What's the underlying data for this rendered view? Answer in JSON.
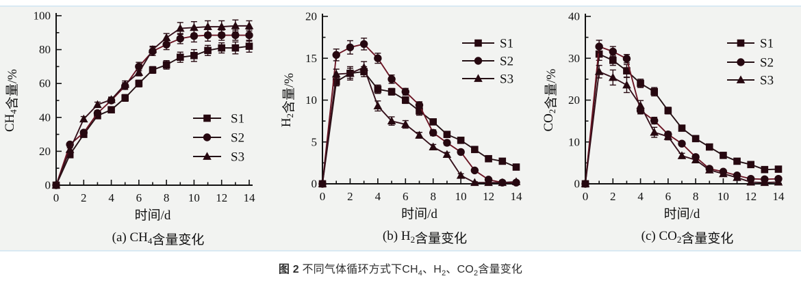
{
  "colors": {
    "panel_bg": "#f2f3f1",
    "panel_border": "#d9e9f3",
    "axis": "#111111",
    "marker": "#260810",
    "line_s1": "#241014",
    "line_s2": "#6b1524",
    "line_s3": "#35101b",
    "caption_text": "#2e2e2e"
  },
  "caption": {
    "parts": [
      {
        "t": "图 2",
        "bold": true
      },
      {
        "t": " 不同气体循环方式下CH"
      },
      {
        "t": "4",
        "sub": true
      },
      {
        "t": "、H"
      },
      {
        "t": "2",
        "sub": true
      },
      {
        "t": "、CO"
      },
      {
        "t": "2",
        "sub": true
      },
      {
        "t": "含量变化"
      }
    ]
  },
  "chart_data": [
    {
      "id": "a",
      "type": "line",
      "title_parts": [
        {
          "t": "(a) CH"
        },
        {
          "t": "4",
          "sub": true
        },
        {
          "t": "含量变化"
        }
      ],
      "xlabel": "时间/d",
      "ylabel_parts": [
        {
          "t": "CH"
        },
        {
          "t": "4",
          "sub": true
        },
        {
          "t": "含量/%"
        }
      ],
      "xlim": [
        0,
        14
      ],
      "xtick": 2,
      "xminor": 1,
      "ylim": [
        0,
        100
      ],
      "ytick": 20,
      "yminor": 10,
      "grid": false,
      "legend_position": "right-middle",
      "x": [
        0,
        1,
        2,
        3,
        4,
        5,
        6,
        7,
        8,
        9,
        10,
        11,
        12,
        13,
        14
      ],
      "series": [
        {
          "name": "S1",
          "marker": "square",
          "values": [
            0,
            18,
            30,
            41,
            44.5,
            51.5,
            60,
            68,
            71,
            75.5,
            76.5,
            79.5,
            81,
            81,
            82
          ],
          "err": [
            0,
            1,
            1,
            1.5,
            1.5,
            2,
            2,
            2,
            2.5,
            3,
            3.5,
            3,
            3,
            3.5,
            3.5
          ]
        },
        {
          "name": "S2",
          "marker": "circle",
          "values": [
            0,
            24,
            31,
            42.5,
            50,
            58.5,
            70,
            79,
            83,
            86.5,
            88,
            88.5,
            88.5,
            88.5,
            88.5
          ],
          "err": [
            0,
            1,
            1,
            1.5,
            1.5,
            2,
            2.5,
            2.5,
            3,
            3,
            3.5,
            3.5,
            3,
            3,
            3.5
          ]
        },
        {
          "name": "S3",
          "marker": "triangle",
          "values": [
            0,
            21,
            39,
            47.5,
            50.5,
            59.5,
            66.5,
            80,
            87,
            92.5,
            93,
            93.5,
            93.5,
            94,
            94
          ],
          "err": [
            0,
            1,
            1.5,
            1.5,
            1.5,
            2,
            2,
            2,
            2.5,
            3.5,
            3.5,
            3.5,
            3.5,
            3.5,
            3
          ]
        }
      ]
    },
    {
      "id": "b",
      "type": "line",
      "title_parts": [
        {
          "t": "(b) H"
        },
        {
          "t": "2",
          "sub": true
        },
        {
          "t": "含量变化"
        }
      ],
      "xlabel": "时间/d",
      "ylabel_parts": [
        {
          "t": "H"
        },
        {
          "t": "2",
          "sub": true
        },
        {
          "t": "含量/%"
        }
      ],
      "xlim": [
        0,
        14
      ],
      "xtick": 2,
      "xminor": 1,
      "ylim": [
        0,
        20
      ],
      "ytick": 5,
      "yminor": 2.5,
      "grid": false,
      "legend_position": "top-right",
      "x": [
        0,
        1,
        2,
        3,
        4,
        5,
        6,
        7,
        8,
        9,
        10,
        11,
        12,
        13,
        14
      ],
      "series": [
        {
          "name": "S1",
          "marker": "square",
          "values": [
            0,
            12.2,
            13.2,
            13.4,
            11.3,
            11,
            10,
            8.7,
            7.4,
            5.9,
            5.2,
            4.1,
            3,
            2.7,
            2
          ],
          "err": [
            0,
            0.5,
            0.8,
            0.6,
            0.5,
            0.4,
            0.4,
            0.5,
            0.3,
            0.3,
            0.3,
            0.25,
            0.2,
            0.2,
            0.2
          ]
        },
        {
          "name": "S2",
          "marker": "circle",
          "values": [
            0,
            15.4,
            16.3,
            16.7,
            15,
            12.5,
            11,
            9.4,
            6.1,
            4.9,
            3.8,
            1.6,
            0.5,
            0.15,
            0.15
          ],
          "err": [
            0,
            0.7,
            0.8,
            0.7,
            0.6,
            0.5,
            0.4,
            0.4,
            0.35,
            0.3,
            0.25,
            0.2,
            0.15,
            0.1,
            0.1
          ]
        },
        {
          "name": "S3",
          "marker": "triangle",
          "values": [
            0,
            13.1,
            13.2,
            13.9,
            9.3,
            7.5,
            7.1,
            5.8,
            4.4,
            3.5,
            1,
            0.15,
            0.15,
            0.15,
            0.25
          ],
          "err": [
            0,
            0.6,
            0.6,
            0.7,
            0.6,
            0.5,
            0.45,
            0.35,
            0.3,
            0.25,
            0.2,
            0.1,
            0.1,
            0.1,
            0.1
          ]
        }
      ]
    },
    {
      "id": "c",
      "type": "line",
      "title_parts": [
        {
          "t": "(c) CO"
        },
        {
          "t": "2",
          "sub": true
        },
        {
          "t": "含量变化"
        }
      ],
      "xlabel": "时间/d",
      "ylabel_parts": [
        {
          "t": "CO"
        },
        {
          "t": "2",
          "sub": true
        },
        {
          "t": "含量/%"
        }
      ],
      "xlim": [
        0,
        14
      ],
      "xtick": 2,
      "xminor": 1,
      "ylim": [
        0,
        40
      ],
      "ytick": 10,
      "yminor": 5,
      "grid": false,
      "legend_position": "top-right",
      "x": [
        0,
        1,
        2,
        3,
        4,
        5,
        6,
        7,
        8,
        9,
        10,
        11,
        12,
        13,
        14
      ],
      "series": [
        {
          "name": "S1",
          "marker": "square",
          "values": [
            0,
            31,
            29.5,
            27,
            24,
            22,
            17.5,
            13.3,
            10.8,
            8.8,
            6.8,
            5.4,
            4.6,
            3.4,
            3.5
          ],
          "err": [
            0,
            1.5,
            1.2,
            1.5,
            1,
            1,
            0.8,
            0.6,
            0.5,
            0.5,
            0.4,
            0.4,
            0.3,
            0.3,
            0.3
          ]
        },
        {
          "name": "S2",
          "marker": "circle",
          "values": [
            0,
            32.8,
            31.6,
            29.9,
            17.5,
            15.1,
            11.8,
            9.6,
            6.4,
            3.6,
            2.9,
            2,
            1.2,
            1.1,
            1.2
          ],
          "err": [
            0,
            1.5,
            1.2,
            1,
            0.8,
            0.8,
            0.6,
            0.5,
            0.5,
            0.4,
            0.3,
            0.3,
            0.2,
            0.2,
            0.2
          ]
        },
        {
          "name": "S3",
          "marker": "triangle",
          "values": [
            0,
            26.8,
            25.4,
            23.6,
            18.7,
            12.3,
            11.3,
            6.7,
            5.7,
            3.3,
            2.4,
            1.5,
            0.4,
            0.3,
            0.4
          ],
          "err": [
            0,
            1.5,
            1.8,
            1.8,
            1.2,
            1.2,
            0.8,
            0.6,
            0.5,
            0.4,
            0.3,
            0.3,
            0.2,
            0.2,
            0.2
          ]
        }
      ]
    }
  ]
}
